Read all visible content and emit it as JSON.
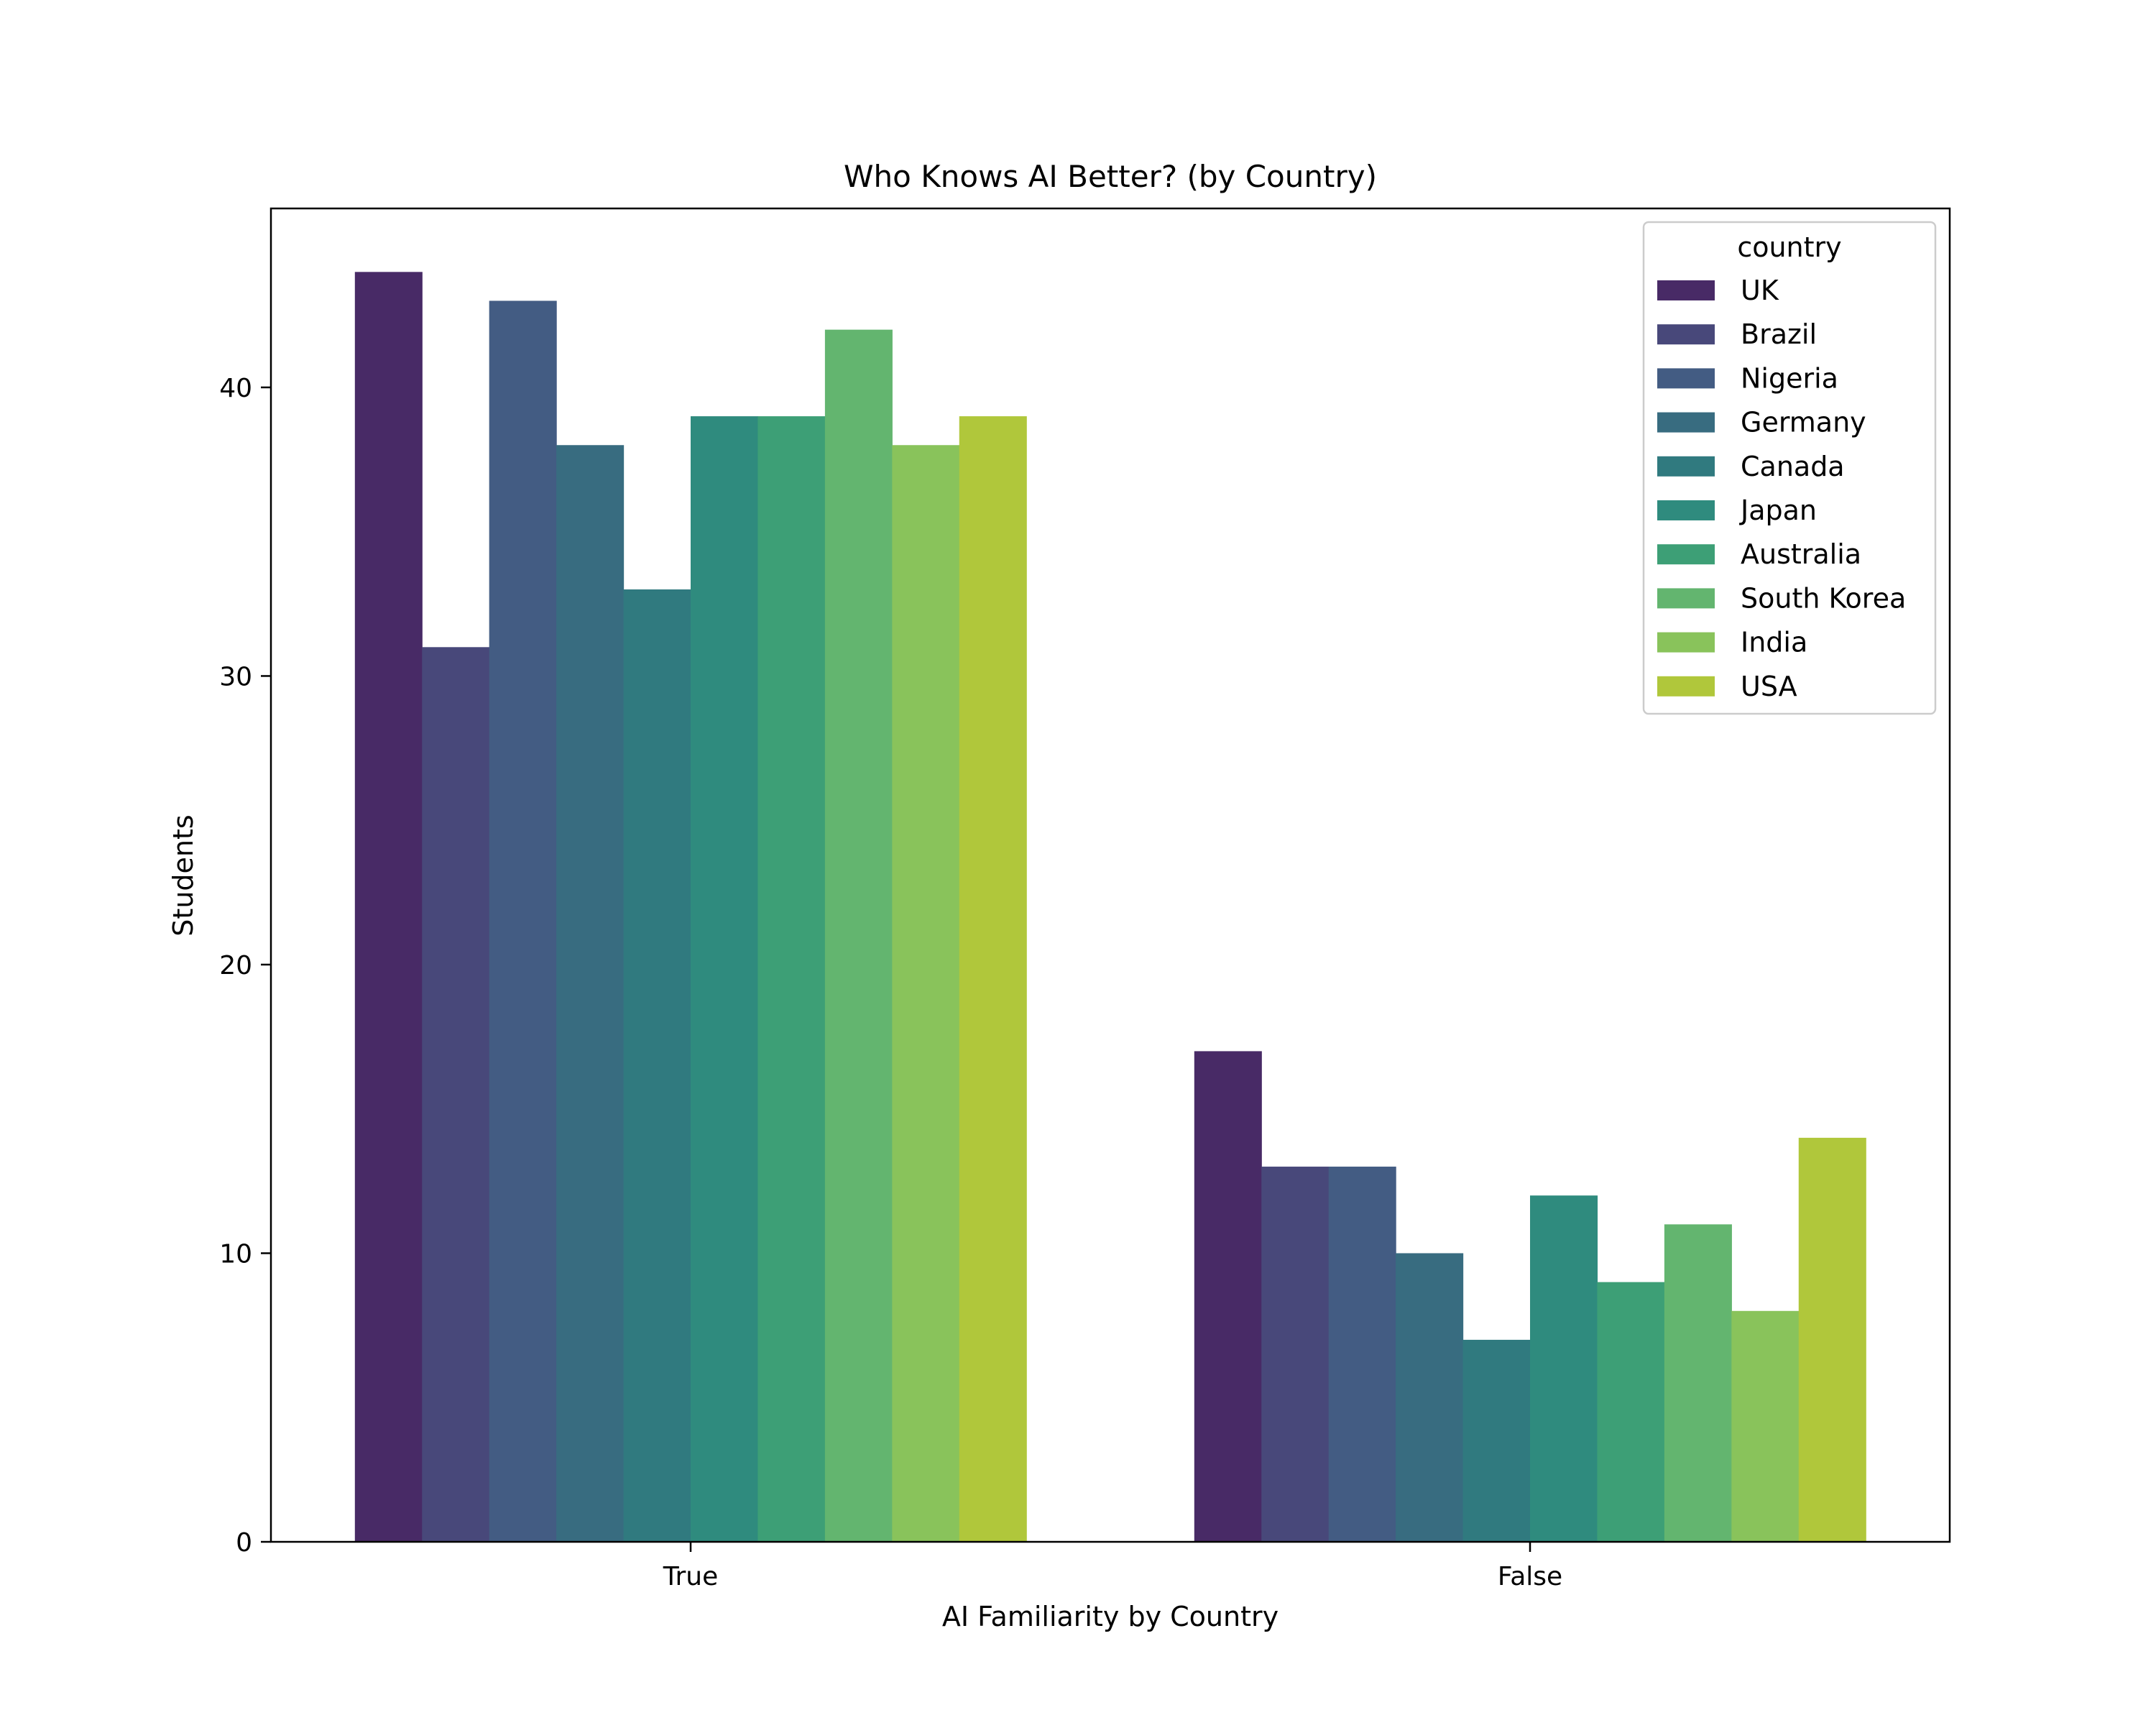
{
  "chart_data": {
    "type": "bar",
    "title": "Who Knows AI Better? (by Country)",
    "xlabel": "AI Familiarity by Country",
    "ylabel": "Students",
    "categories": [
      "True",
      "False"
    ],
    "ylim": [
      0,
      46.2
    ],
    "yticks": [
      0,
      10,
      20,
      30,
      40
    ],
    "grid": false,
    "legend": {
      "title": "country",
      "placement": "top-right"
    },
    "series": [
      {
        "name": "UK",
        "color": "#482a66",
        "values": [
          44,
          17
        ]
      },
      {
        "name": "Brazil",
        "color": "#48487a",
        "values": [
          31,
          13
        ]
      },
      {
        "name": "Nigeria",
        "color": "#435c83",
        "values": [
          43,
          13
        ]
      },
      {
        "name": "Germany",
        "color": "#386c80",
        "values": [
          38,
          10
        ]
      },
      {
        "name": "Canada",
        "color": "#307a7f",
        "values": [
          33,
          7
        ]
      },
      {
        "name": "Japan",
        "color": "#2f8b7e",
        "values": [
          39,
          12
        ]
      },
      {
        "name": "Australia",
        "color": "#3d9f76",
        "values": [
          39,
          9
        ]
      },
      {
        "name": "South Korea",
        "color": "#63b56f",
        "values": [
          42,
          11
        ]
      },
      {
        "name": "India",
        "color": "#89c35b",
        "values": [
          38,
          8
        ]
      },
      {
        "name": "USA",
        "color": "#b0c73b",
        "values": [
          39,
          14
        ]
      }
    ]
  }
}
